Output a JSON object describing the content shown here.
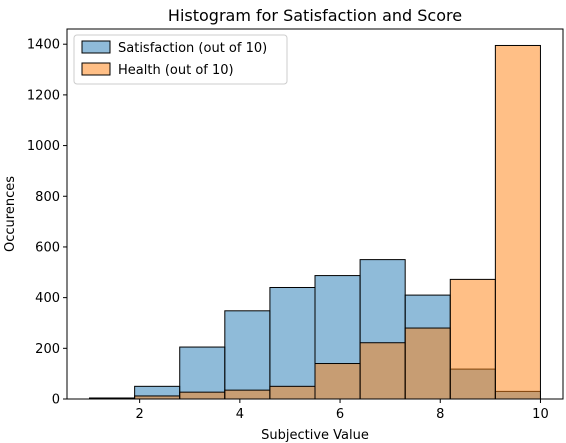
{
  "chart_data": {
    "type": "bar",
    "title": "Histogram for Satisfaction and Score",
    "xlabel": "Subjective Value",
    "ylabel": "Occurences",
    "xlim": [
      0.55,
      10.45
    ],
    "ylim": [
      0,
      1460
    ],
    "xticks": [
      2,
      4,
      6,
      8,
      10
    ],
    "yticks": [
      0,
      200,
      400,
      600,
      800,
      1000,
      1200,
      1400
    ],
    "bin_edges": [
      1,
      1.9,
      2.8,
      3.7,
      4.6,
      5.5,
      6.4,
      7.3,
      8.2,
      9.1,
      10
    ],
    "legend_position": "top-left",
    "grid": false,
    "series": [
      {
        "name": "Satisfaction (out of 10)",
        "color": "#1f77b4",
        "alpha": 0.5,
        "values": [
          4,
          50,
          205,
          348,
          440,
          487,
          550,
          410,
          118,
          30
        ]
      },
      {
        "name": "Health (out of 10)",
        "color": "#ff7f0e",
        "alpha": 0.5,
        "values": [
          3,
          12,
          27,
          35,
          50,
          140,
          222,
          280,
          472,
          1395
        ]
      }
    ]
  }
}
